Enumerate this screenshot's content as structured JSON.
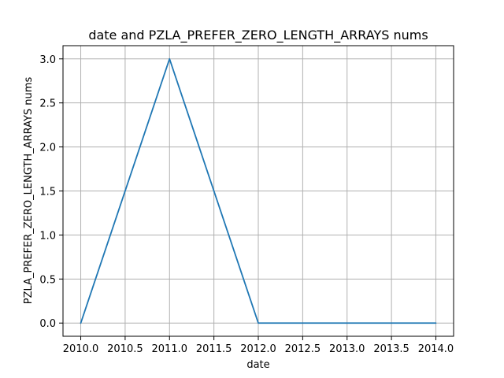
{
  "chart_data": {
    "type": "line",
    "title": "date and PZLA_PREFER_ZERO_LENGTH_ARRAYS nums",
    "xlabel": "date",
    "ylabel": "PZLA_PREFER_ZERO_LENGTH_ARRAYS nums",
    "x": [
      2010,
      2011,
      2012,
      2013,
      2014
    ],
    "series": [
      {
        "values": [
          0,
          3,
          0,
          0,
          0
        ],
        "color": "#1f77b4"
      }
    ],
    "xlim": [
      2009.8,
      2014.2
    ],
    "ylim": [
      -0.15,
      3.15
    ],
    "xticks": [
      2010.0,
      2010.5,
      2011.0,
      2011.5,
      2012.0,
      2012.5,
      2013.0,
      2013.5,
      2014.0
    ],
    "xtick_labels": [
      "2010.0",
      "2010.5",
      "2011.0",
      "2011.5",
      "2012.0",
      "2012.5",
      "2013.0",
      "2013.5",
      "2014.0"
    ],
    "yticks": [
      0.0,
      0.5,
      1.0,
      1.5,
      2.0,
      2.5,
      3.0
    ],
    "ytick_labels": [
      "0.0",
      "0.5",
      "1.0",
      "1.5",
      "2.0",
      "2.5",
      "3.0"
    ],
    "grid": true,
    "grid_color": "#b0b0b0"
  }
}
